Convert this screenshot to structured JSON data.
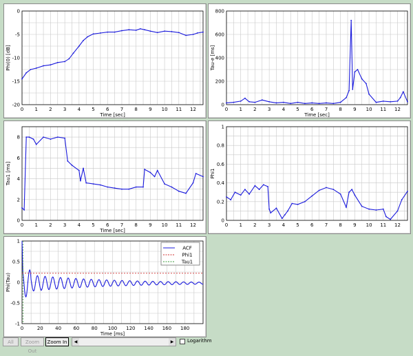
{
  "colors": {
    "background": "#c6dcc6",
    "series": "#1a1adc",
    "grid": "#c8c8c8"
  },
  "toolbar": {
    "all_label": "All",
    "zoom_out_label": "Zoom Out",
    "zoom_in_label": "Zoom In",
    "left_arrow": "◀",
    "right_arrow": "▶",
    "log_label": "Logarithm",
    "log_checked": false
  },
  "chart_data": [
    {
      "id": "phi0",
      "type": "line",
      "title": "",
      "xlabel": "Time [sec]",
      "ylabel": "Phi(0) [dB]",
      "xlim": [
        0,
        12.7
      ],
      "ylim": [
        -20,
        0
      ],
      "xticks": [
        0,
        1,
        2,
        3,
        4,
        5,
        6,
        7,
        8,
        9,
        10,
        11,
        12
      ],
      "yticks": [
        0,
        -5,
        -10,
        -15,
        -20
      ],
      "grid": true,
      "x": [
        0,
        0.3,
        0.6,
        1,
        1.5,
        2,
        2.5,
        3,
        3.3,
        3.6,
        4,
        4.3,
        4.6,
        5,
        5.5,
        6,
        6.5,
        7,
        7.5,
        8,
        8.3,
        8.6,
        9,
        9.5,
        10,
        10.5,
        11,
        11.5,
        12,
        12.3,
        12.7
      ],
      "y": [
        -14.5,
        -13.2,
        -12.5,
        -12.2,
        -11.7,
        -11.5,
        -11.0,
        -10.8,
        -10.2,
        -9.0,
        -7.5,
        -6.3,
        -5.5,
        -4.9,
        -4.7,
        -4.5,
        -4.5,
        -4.2,
        -4.0,
        -4.1,
        -3.8,
        -4.0,
        -4.3,
        -4.6,
        -4.3,
        -4.4,
        -4.6,
        -5.2,
        -5.0,
        -4.7,
        -4.5
      ]
    },
    {
      "id": "taue",
      "type": "line",
      "title": "",
      "xlabel": "Time [sec]",
      "ylabel": "Tau-e [ms]",
      "xlim": [
        0,
        12.7
      ],
      "ylim": [
        0,
        800
      ],
      "xticks": [
        0,
        1,
        2,
        3,
        4,
        5,
        6,
        7,
        8,
        9,
        10,
        11,
        12
      ],
      "yticks": [
        0,
        200,
        400,
        600,
        800
      ],
      "grid": true,
      "x": [
        0,
        0.5,
        1,
        1.3,
        1.6,
        2,
        2.5,
        3,
        3.5,
        4,
        4.5,
        5,
        5.5,
        6,
        6.5,
        7,
        7.5,
        8,
        8.4,
        8.6,
        8.75,
        8.85,
        9,
        9.2,
        9.5,
        9.8,
        10,
        10.5,
        11,
        11.5,
        12,
        12.2,
        12.4,
        12.7
      ],
      "y": [
        15,
        20,
        30,
        55,
        25,
        20,
        40,
        25,
        15,
        20,
        10,
        20,
        10,
        15,
        10,
        15,
        10,
        20,
        60,
        120,
        720,
        130,
        280,
        300,
        220,
        180,
        90,
        20,
        30,
        25,
        30,
        60,
        110,
        25
      ]
    },
    {
      "id": "tau1",
      "type": "line",
      "title": "",
      "xlabel": "Time [sec]",
      "ylabel": "Tau1 [ms]",
      "xlim": [
        0,
        12.7
      ],
      "ylim": [
        0,
        9
      ],
      "xticks": [
        0,
        1,
        2,
        3,
        4,
        5,
        6,
        7,
        8,
        9,
        10,
        11,
        12
      ],
      "yticks": [
        0,
        2,
        4,
        6,
        8
      ],
      "grid": true,
      "x": [
        0,
        0.15,
        0.3,
        0.5,
        0.8,
        1,
        1.5,
        2,
        2.5,
        3,
        3.2,
        3.5,
        4,
        4.1,
        4.3,
        4.5,
        5,
        5.5,
        6,
        6.5,
        7,
        7.5,
        8,
        8.5,
        8.6,
        9,
        9.3,
        9.5,
        10,
        10.5,
        11,
        11.5,
        12,
        12.2,
        12.7
      ],
      "y": [
        1.2,
        1.0,
        8.0,
        8.0,
        7.8,
        7.3,
        8.0,
        7.8,
        8.0,
        7.9,
        5.7,
        5.3,
        4.8,
        3.8,
        5.0,
        3.6,
        3.5,
        3.4,
        3.2,
        3.1,
        3.0,
        3.0,
        3.2,
        3.2,
        4.9,
        4.6,
        4.2,
        4.8,
        3.5,
        3.2,
        2.8,
        2.6,
        3.6,
        4.5,
        4.2
      ]
    },
    {
      "id": "phi1",
      "type": "line",
      "title": "",
      "xlabel": "",
      "ylabel": "Phi1",
      "xlim": [
        0,
        12.7
      ],
      "ylim": [
        0,
        1.0
      ],
      "xticks": [
        0,
        1,
        2,
        3,
        4,
        5,
        6,
        7,
        8,
        9,
        10,
        11,
        12
      ],
      "yticks": [
        0,
        0.2,
        0.4,
        0.6,
        0.8,
        1.0
      ],
      "grid": true,
      "x": [
        0,
        0.3,
        0.6,
        1,
        1.3,
        1.6,
        2,
        2.3,
        2.6,
        2.9,
        3,
        3.1,
        3.5,
        3.9,
        4.1,
        4.3,
        4.6,
        5,
        5.5,
        6,
        6.5,
        7,
        7.5,
        8,
        8.4,
        8.6,
        8.8,
        9,
        9.5,
        10,
        10.5,
        11,
        11.2,
        11.5,
        12,
        12.3,
        12.7
      ],
      "y": [
        0.25,
        0.22,
        0.3,
        0.27,
        0.33,
        0.28,
        0.37,
        0.33,
        0.38,
        0.36,
        0.12,
        0.08,
        0.13,
        0.02,
        0.06,
        0.1,
        0.18,
        0.17,
        0.2,
        0.26,
        0.32,
        0.35,
        0.33,
        0.28,
        0.14,
        0.3,
        0.33,
        0.27,
        0.15,
        0.12,
        0.11,
        0.12,
        0.04,
        0.01,
        0.1,
        0.22,
        0.31
      ]
    },
    {
      "id": "acf",
      "type": "line",
      "title": "",
      "xlabel": "Time [ms]",
      "ylabel": "Phi(Tau)",
      "xlim": [
        0,
        200
      ],
      "ylim": [
        -1,
        1
      ],
      "xticks": [
        0,
        20,
        40,
        60,
        80,
        100,
        120,
        140,
        160,
        180
      ],
      "yticks": [
        1,
        0.5,
        0,
        -0.5,
        -1
      ],
      "grid": true,
      "series": [
        {
          "name": "ACF",
          "color": "#1a1adc",
          "style": "solid"
        },
        {
          "name": "Phi1",
          "color": "#d03030",
          "style": "dashed",
          "value": 0.22
        },
        {
          "name": "Tau1",
          "color": "#3a9a3a",
          "style": "dashed",
          "value": 0
        }
      ]
    }
  ]
}
